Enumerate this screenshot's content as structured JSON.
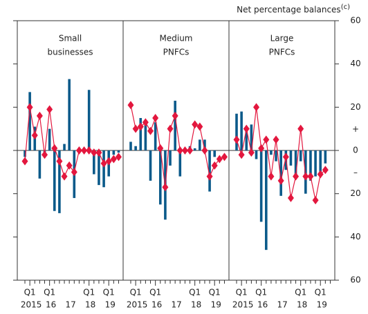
{
  "chart_data": [
    {
      "type": "bar",
      "title": [
        "Small",
        "businesses"
      ],
      "categories": [
        null,
        "Q1",
        null,
        null,
        null,
        "Q1",
        null,
        null,
        null,
        null,
        null,
        null,
        null,
        "Q1",
        null,
        null,
        null,
        "Q1",
        null,
        null
      ],
      "years": [
        null,
        "2015",
        null,
        null,
        null,
        "16",
        null,
        null,
        null,
        "17",
        null,
        null,
        null,
        "18",
        null,
        null,
        null,
        "19",
        null,
        null
      ],
      "series": [
        {
          "type": "bar",
          "color": "#0b5a8a",
          "values": [
            -3,
            27,
            11,
            -13,
            -3,
            10,
            -28,
            -29,
            3,
            33,
            -22,
            -1,
            1,
            28,
            -11,
            -16,
            -17,
            -12,
            -2,
            -1
          ]
        },
        {
          "type": "line",
          "color": "#e3173e",
          "values": [
            -5,
            20,
            7,
            16,
            -2,
            19,
            1,
            -5,
            -12,
            -7,
            -10,
            0,
            0,
            0,
            -1,
            -1,
            -6,
            -5,
            -4,
            -3
          ]
        }
      ],
      "ylim": [
        -60,
        60
      ],
      "yticks": [
        -60,
        -40,
        -20,
        0,
        20,
        40,
        60
      ]
    },
    {
      "type": "bar",
      "title": [
        "Medium",
        "PNFCs"
      ],
      "categories": [
        null,
        "Q1",
        null,
        null,
        null,
        "Q1",
        null,
        null,
        null,
        null,
        null,
        null,
        null,
        "Q1",
        null,
        null,
        null,
        "Q1",
        null,
        null
      ],
      "years": [
        null,
        "2015",
        null,
        null,
        null,
        "16",
        null,
        null,
        null,
        "17",
        null,
        null,
        null,
        "18",
        null,
        null,
        null,
        "19",
        null,
        null
      ],
      "series": [
        {
          "type": "bar",
          "color": "#0b5a8a",
          "values": [
            4,
            2,
            15,
            14,
            -14,
            13,
            -25,
            -32,
            -7,
            23,
            -12,
            1,
            2,
            1,
            5,
            5,
            -19,
            -3,
            0,
            null
          ]
        },
        {
          "type": "line",
          "color": "#e3173e",
          "values": [
            21,
            10,
            11,
            13,
            9,
            15,
            1,
            -17,
            10,
            16,
            0,
            0,
            0,
            12,
            11,
            0,
            -12,
            -7,
            -4,
            -3
          ]
        }
      ],
      "ylim": [
        -60,
        60
      ]
    },
    {
      "type": "bar",
      "title": [
        "Large",
        "PNFCs"
      ],
      "categories": [
        null,
        "Q1",
        null,
        null,
        null,
        "Q1",
        null,
        null,
        null,
        null,
        null,
        null,
        null,
        "Q1",
        null,
        null,
        null,
        "Q1",
        null,
        null
      ],
      "years": [
        null,
        "2015",
        null,
        null,
        null,
        "16",
        null,
        null,
        null,
        "17",
        null,
        null,
        null,
        "18",
        null,
        null,
        null,
        "19",
        null,
        null
      ],
      "series": [
        {
          "type": "bar",
          "color": "#0b5a8a",
          "values": [
            17,
            18,
            10,
            12,
            -4,
            -33,
            -46,
            -2,
            -5,
            -21,
            -9,
            -7,
            -11,
            -5,
            -20,
            -14,
            -12,
            -12,
            -6,
            null
          ]
        },
        {
          "type": "line",
          "color": "#e3173e",
          "values": [
            5,
            -2,
            10,
            -1,
            20,
            1,
            5,
            -12,
            5,
            -14,
            -3,
            -22,
            -12,
            10,
            -12,
            -12,
            -23,
            -11,
            -9,
            null
          ]
        }
      ],
      "ylim": [
        -60,
        60
      ],
      "yticks": [
        {
          "value": -60,
          "label": "60"
        },
        {
          "value": -40,
          "label": "40"
        },
        {
          "value": -20,
          "label": "20"
        },
        0,
        {
          "value": 20,
          "label": "20"
        },
        {
          "value": 40,
          "label": "40"
        },
        60
      ],
      "y_label": "Net percentage balances",
      "y_label_note": "(c)",
      "annotations": [
        {
          "value": 10,
          "label": "+"
        },
        {
          "value": -10,
          "label": "–"
        }
      ]
    }
  ]
}
